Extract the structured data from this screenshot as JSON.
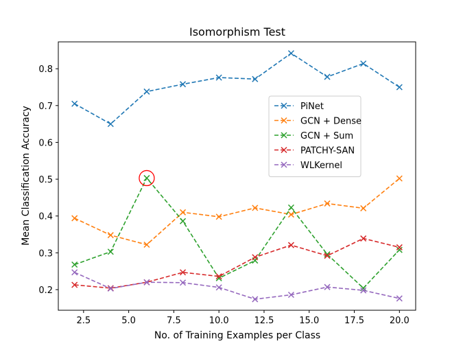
{
  "chart_data": {
    "type": "line",
    "title": "Isomorphism Test",
    "xlabel": "No. of Training Examples per Class",
    "ylabel": "Mean Classification Accuracy",
    "xlim": [
      1.1,
      20.9
    ],
    "ylim": [
      0.144,
      0.873
    ],
    "x_ticks": [
      2.5,
      5.0,
      7.5,
      10.0,
      12.5,
      15.0,
      17.5,
      20.0
    ],
    "x_tick_labels": [
      "2.5",
      "5.0",
      "7.5",
      "10.0",
      "12.5",
      "15.0",
      "17.5",
      "20.0"
    ],
    "y_ticks": [
      0.2,
      0.3,
      0.4,
      0.5,
      0.6,
      0.7,
      0.8
    ],
    "y_tick_labels": [
      "0.2",
      "0.3",
      "0.4",
      "0.5",
      "0.6",
      "0.7",
      "0.8"
    ],
    "grid": false,
    "legend_position": "right",
    "x": [
      2,
      4,
      6,
      8,
      10,
      12,
      14,
      16,
      18,
      20
    ],
    "series": [
      {
        "name": "PiNet",
        "color": "#1f77b4",
        "values": [
          0.705,
          0.65,
          0.738,
          0.758,
          0.776,
          0.772,
          0.842,
          0.778,
          0.814,
          0.75
        ]
      },
      {
        "name": "GCN + Dense",
        "color": "#ff7f0e",
        "values": [
          0.394,
          0.348,
          0.322,
          0.41,
          0.398,
          0.422,
          0.404,
          0.434,
          0.421,
          0.502
        ]
      },
      {
        "name": "GCN + Sum",
        "color": "#2ca02c",
        "values": [
          0.268,
          0.303,
          0.503,
          0.386,
          0.231,
          0.279,
          0.423,
          0.296,
          0.204,
          0.308
        ]
      },
      {
        "name": "PATCHY-SAN",
        "color": "#d62728",
        "values": [
          0.213,
          0.204,
          0.22,
          0.247,
          0.236,
          0.288,
          0.321,
          0.292,
          0.339,
          0.315
        ]
      },
      {
        "name": "WLKernel",
        "color": "#9467bd",
        "values": [
          0.247,
          0.203,
          0.22,
          0.219,
          0.206,
          0.174,
          0.186,
          0.207,
          0.198,
          0.176
        ]
      }
    ],
    "annotations": [
      {
        "type": "circle-highlight",
        "x": 6,
        "y": 0.503,
        "color": "#ff0000"
      }
    ]
  }
}
